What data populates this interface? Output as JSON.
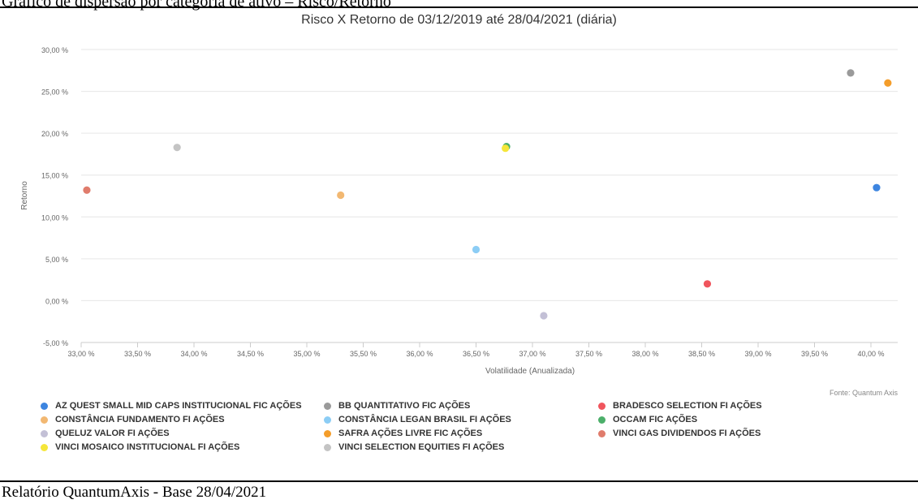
{
  "document": {
    "header_text": "Gráfico de dispersão por categoria de ativo – Risco/Retorno",
    "footer_text": "Relatório QuantumAxis - Base 28/04/2021"
  },
  "chart_data": {
    "type": "scatter",
    "title": "Risco X Retorno de 03/12/2019 até 28/04/2021 (diária)",
    "xlabel": "Volatilidade (Anualizada)",
    "ylabel": "Retorno",
    "xlim": [
      33,
      40.1
    ],
    "ylim": [
      -5,
      30
    ],
    "x_ticks": [
      "33,00 %",
      "33,50 %",
      "34,00 %",
      "34,50 %",
      "35,00 %",
      "35,50 %",
      "36,00 %",
      "36,50 %",
      "37,00 %",
      "37,50 %",
      "38,00 %",
      "38,50 %",
      "39,00 %",
      "39,50 %",
      "40,00 %"
    ],
    "y_ticks": [
      "-5,00 %",
      "0,00 %",
      "5,00 %",
      "10,00 %",
      "15,00 %",
      "20,00 %",
      "25,00 %",
      "30,00 %"
    ],
    "grid": "horizontal",
    "legend_position": "bottom",
    "source": "Fonte: Quantum Axis",
    "series": [
      {
        "name": "AZ QUEST SMALL MID CAPS INSTITUCIONAL FIC AÇÕES",
        "color": "#3d85e0",
        "x": 40.05,
        "y": 13.5
      },
      {
        "name": "BB QUANTITATIVO FIC AÇÕES",
        "color": "#9a9a9a",
        "x": 39.82,
        "y": 27.2
      },
      {
        "name": "BRADESCO SELECTION FI AÇÕES",
        "color": "#f0555d",
        "x": 38.55,
        "y": 2.0
      },
      {
        "name": "CONSTÂNCIA FUNDAMENTO FI AÇÕES",
        "color": "#f2b872",
        "x": 35.3,
        "y": 12.6
      },
      {
        "name": "CONSTÂNCIA LEGAN BRASIL FI AÇÕES",
        "color": "#8ccdf5",
        "x": 36.5,
        "y": 6.1
      },
      {
        "name": "OCCAM FIC AÇÕES",
        "color": "#4caf6a",
        "x": 36.77,
        "y": 18.4
      },
      {
        "name": "QUELUZ VALOR FI AÇÕES",
        "color": "#c3c0d6",
        "x": 37.1,
        "y": -1.8
      },
      {
        "name": "SAFRA AÇÕES LIVRE FIC AÇÕES",
        "color": "#f49d2a",
        "x": 40.15,
        "y": 26.0
      },
      {
        "name": "VINCI GAS DIVIDENDOS FI AÇÕES",
        "color": "#e07c6c",
        "x": 33.05,
        "y": 13.2
      },
      {
        "name": "VINCI MOSAICO INSTITUCIONAL FI AÇÕES",
        "color": "#f5e63a",
        "x": 36.76,
        "y": 18.2
      },
      {
        "name": "VINCI SELECTION EQUITIES FI AÇÕES",
        "color": "#c4c4c4",
        "x": 33.85,
        "y": 18.3
      }
    ]
  }
}
